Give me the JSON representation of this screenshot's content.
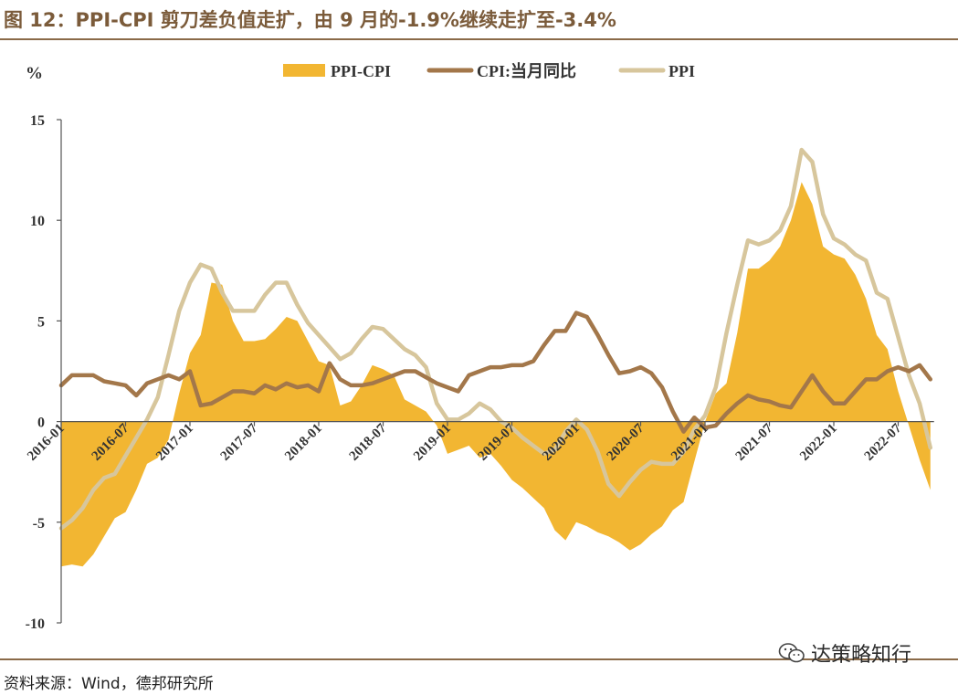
{
  "header": {
    "title": "图 12：PPI-CPI 剪刀差负值走扩，由 9 月的-1.9%继续走扩至-3.4%"
  },
  "footer": {
    "source": "资料来源：Wind，德邦研究所",
    "watermark": "达策略知行",
    "watermark_icon": "wechat-icon"
  },
  "colors": {
    "ppi_cpi": "#f2b632",
    "cpi": "#a3774a",
    "ppi": "#d7c69c",
    "axis": "#555555",
    "rule": "#8a6a48"
  },
  "chart_data": {
    "type": "line",
    "ylabel": "%",
    "ylim": [
      -10,
      15
    ],
    "yticks": [
      -10,
      -5,
      0,
      5,
      10,
      15
    ],
    "x_start": "2016-01",
    "x_labels": [
      "2016-01",
      "2016-07",
      "2017-01",
      "2017-07",
      "2018-01",
      "2018-07",
      "2019-01",
      "2019-07",
      "2020-01",
      "2020-07",
      "2021-01",
      "2021-07",
      "2022-01",
      "2022-07"
    ],
    "legend_position": "top",
    "grid": false,
    "series": [
      {
        "name": "PPI-CPI",
        "type": "area",
        "values": [
          -7.2,
          -7.1,
          -7.2,
          -6.6,
          -5.7,
          -4.8,
          -4.5,
          -3.4,
          -2.1,
          -1.8,
          -0.9,
          1.4,
          3.4,
          4.3,
          6.9,
          6.8,
          5.0,
          4.0,
          4.0,
          4.1,
          4.6,
          5.2,
          5.0,
          4.0,
          3.0,
          2.8,
          0.8,
          1.0,
          1.8,
          2.8,
          2.6,
          2.3,
          1.1,
          0.8,
          0.5,
          -0.2,
          -1.6,
          -1.4,
          -1.2,
          -1.8,
          -1.6,
          -2.2,
          -2.9,
          -3.3,
          -3.8,
          -4.3,
          -5.4,
          -5.9,
          -5.0,
          -5.2,
          -5.5,
          -5.7,
          -6.0,
          -6.4,
          -6.1,
          -5.6,
          -5.2,
          -4.4,
          -4.0,
          -2.0,
          0.0,
          1.4,
          1.9,
          4.4,
          7.6,
          7.6,
          8.0,
          8.7,
          10.0,
          11.9,
          10.8,
          8.7,
          8.3,
          8.1,
          7.3,
          6.1,
          4.3,
          3.6,
          1.5,
          -0.2,
          -1.9,
          -3.4
        ]
      },
      {
        "name": "CPI:当月同比",
        "type": "line",
        "values": [
          1.8,
          2.3,
          2.3,
          2.3,
          2.0,
          1.9,
          1.8,
          1.3,
          1.9,
          2.1,
          2.3,
          2.1,
          2.5,
          0.8,
          0.9,
          1.2,
          1.5,
          1.5,
          1.4,
          1.8,
          1.6,
          1.9,
          1.7,
          1.8,
          1.5,
          2.9,
          2.1,
          1.8,
          1.8,
          1.9,
          2.1,
          2.3,
          2.5,
          2.5,
          2.2,
          1.9,
          1.7,
          1.5,
          2.3,
          2.5,
          2.7,
          2.7,
          2.8,
          2.8,
          3.0,
          3.8,
          4.5,
          4.5,
          5.4,
          5.2,
          4.3,
          3.3,
          2.4,
          2.5,
          2.7,
          2.4,
          1.7,
          0.5,
          -0.5,
          0.2,
          -0.3,
          -0.2,
          0.4,
          0.9,
          1.3,
          1.1,
          1.0,
          0.8,
          0.7,
          1.5,
          2.3,
          1.5,
          0.9,
          0.9,
          1.5,
          2.1,
          2.1,
          2.5,
          2.7,
          2.5,
          2.8,
          2.1
        ]
      },
      {
        "name": "PPI",
        "type": "line",
        "values": [
          -5.3,
          -4.9,
          -4.3,
          -3.4,
          -2.8,
          -2.6,
          -1.7,
          -0.8,
          0.1,
          1.2,
          3.3,
          5.5,
          6.9,
          7.8,
          7.6,
          6.4,
          5.5,
          5.5,
          5.5,
          6.3,
          6.9,
          6.9,
          5.8,
          4.9,
          4.3,
          3.7,
          3.1,
          3.4,
          4.1,
          4.7,
          4.6,
          4.1,
          3.6,
          3.3,
          2.7,
          0.9,
          0.1,
          0.1,
          0.4,
          0.9,
          0.6,
          0.0,
          -0.3,
          -0.8,
          -1.2,
          -1.6,
          -1.4,
          -0.5,
          0.1,
          -0.4,
          -1.5,
          -3.1,
          -3.7,
          -3.0,
          -2.4,
          -2.0,
          -2.1,
          -2.1,
          -1.5,
          -0.4,
          0.3,
          1.7,
          4.4,
          6.8,
          9.0,
          8.8,
          9.0,
          9.5,
          10.7,
          13.5,
          12.9,
          10.3,
          9.1,
          8.8,
          8.3,
          8.0,
          6.4,
          6.1,
          4.2,
          2.3,
          0.9,
          -1.3
        ]
      }
    ]
  }
}
